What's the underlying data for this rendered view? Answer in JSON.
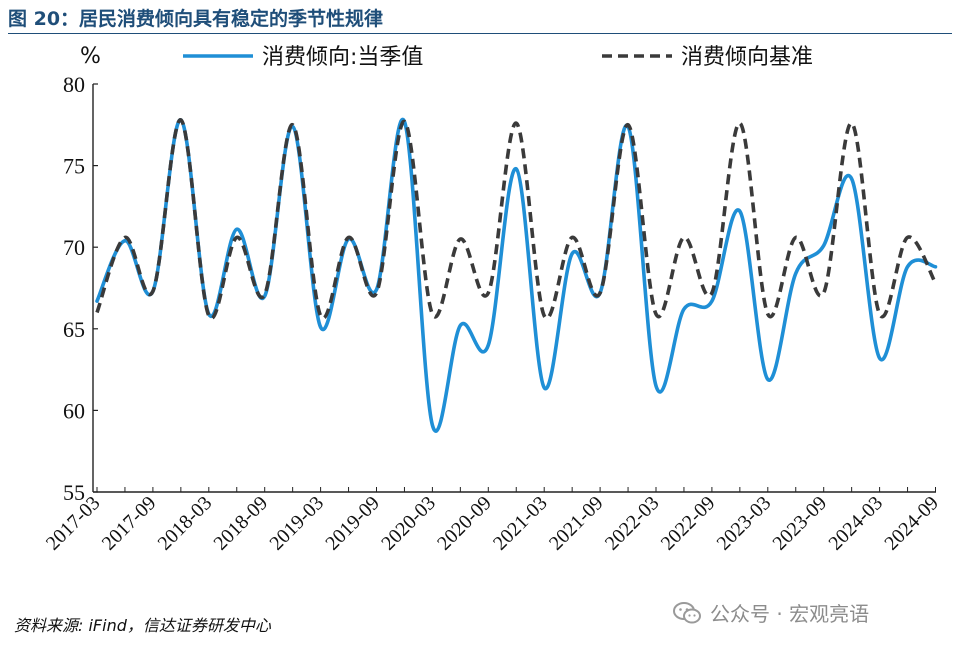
{
  "page": {
    "title": "图 20：居民消费倾向具有稳定的季节性规律",
    "source": "资料来源: iFind，信达证券研发中心",
    "watermark": "公众号 · 宏观亮语"
  },
  "colors": {
    "title": "#1f4e79",
    "series_actual": "#1f8fd6",
    "series_baseline": "#3a3a3a"
  },
  "chart_data": {
    "type": "line",
    "ylabel": "%",
    "ylim": [
      55,
      80
    ],
    "yticks": [
      55,
      60,
      65,
      70,
      75,
      80
    ],
    "xtick_labels": [
      "2017-03",
      "2017-09",
      "2018-03",
      "2018-09",
      "2019-03",
      "2019-09",
      "2020-03",
      "2020-09",
      "2021-03",
      "2021-09",
      "2022-03",
      "2022-09",
      "2023-03",
      "2023-09",
      "2024-03",
      "2024-09"
    ],
    "x": [
      "2017-03",
      "2017-06",
      "2017-09",
      "2017-12",
      "2018-03",
      "2018-06",
      "2018-09",
      "2018-12",
      "2019-03",
      "2019-06",
      "2019-09",
      "2019-12",
      "2020-03",
      "2020-06",
      "2020-09",
      "2020-12",
      "2021-03",
      "2021-06",
      "2021-09",
      "2021-12",
      "2022-03",
      "2022-06",
      "2022-09",
      "2022-12",
      "2023-03",
      "2023-06",
      "2023-09",
      "2023-12",
      "2024-03",
      "2024-06",
      "2024-09"
    ],
    "legend": "top",
    "grid": false,
    "series": [
      {
        "name": "消费倾向:当季值",
        "style": "solid",
        "color": "#1f8fd6",
        "values": [
          66.7,
          70.4,
          67.3,
          77.8,
          65.9,
          71.1,
          67.0,
          77.4,
          65.1,
          70.5,
          67.4,
          77.7,
          59.1,
          65.2,
          64.0,
          74.8,
          61.4,
          69.6,
          67.2,
          77.4,
          61.5,
          66.2,
          66.7,
          72.2,
          61.9,
          68.4,
          70.1,
          74.2,
          63.2,
          68.8,
          68.8
        ]
      },
      {
        "name": "消费倾向基准",
        "style": "dashed",
        "color": "#3a3a3a",
        "values": [
          66.0,
          70.6,
          67.3,
          77.8,
          65.8,
          70.6,
          67.1,
          77.5,
          65.8,
          70.6,
          67.2,
          77.7,
          65.9,
          70.5,
          67.2,
          77.6,
          65.8,
          70.6,
          67.2,
          77.5,
          65.9,
          70.6,
          67.2,
          77.6,
          65.9,
          70.6,
          67.2,
          77.6,
          65.9,
          70.6,
          67.8
        ]
      }
    ]
  }
}
